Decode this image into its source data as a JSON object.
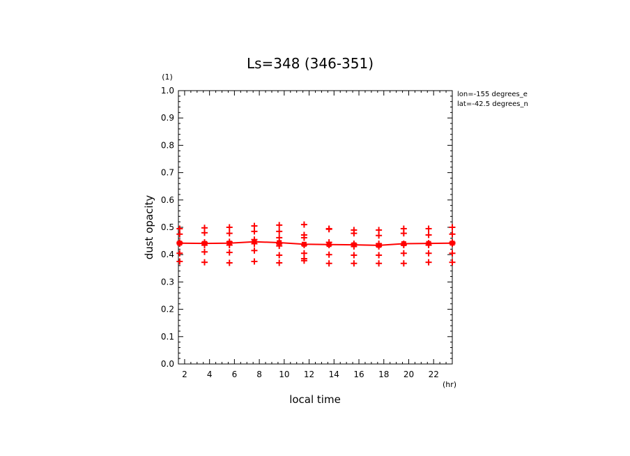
{
  "chart_data": {
    "type": "scatter",
    "title": "Ls=348 (346-351)",
    "xlabel": "local time",
    "ylabel": "dust opacity",
    "x_unit": "(hr)",
    "y_unit": "(1)",
    "xlim": [
      1.5,
      23.5
    ],
    "ylim": [
      0.0,
      1.0
    ],
    "xticks": [
      2,
      4,
      6,
      8,
      10,
      12,
      14,
      16,
      18,
      20,
      22
    ],
    "xtick_labels": [
      "2",
      "4",
      "6",
      "8",
      "10",
      "12",
      "14",
      "16",
      "18",
      "20",
      "22"
    ],
    "yticks": [
      0.0,
      0.1,
      0.2,
      0.3,
      0.4,
      0.5,
      0.6,
      0.7,
      0.8,
      0.9,
      1.0
    ],
    "ytick_labels": [
      "0.0",
      "0.1",
      "0.2",
      "0.3",
      "0.4",
      "0.5",
      "0.6",
      "0.7",
      "0.8",
      "0.9",
      "1.0"
    ],
    "annotations": [
      "lon=-155 degrees_e",
      "lat=-42.5 degrees_n"
    ],
    "color": "#ff0000",
    "mean_line": {
      "x": [
        1.6,
        3.6,
        5.6,
        7.6,
        9.6,
        11.6,
        13.6,
        15.6,
        17.6,
        19.6,
        21.6,
        23.5
      ],
      "y": [
        0.442,
        0.441,
        0.442,
        0.447,
        0.444,
        0.438,
        0.437,
        0.436,
        0.434,
        0.44,
        0.441,
        0.442
      ]
    },
    "points": [
      {
        "x": 1.6,
        "y": [
          0.495,
          0.475,
          0.445,
          0.44,
          0.405,
          0.375
        ]
      },
      {
        "x": 3.6,
        "y": [
          0.498,
          0.48,
          0.445,
          0.435,
          0.41,
          0.372
        ]
      },
      {
        "x": 5.6,
        "y": [
          0.5,
          0.478,
          0.447,
          0.435,
          0.408,
          0.37
        ]
      },
      {
        "x": 7.6,
        "y": [
          0.505,
          0.485,
          0.455,
          0.44,
          0.415,
          0.375
        ]
      },
      {
        "x": 9.6,
        "y": [
          0.508,
          0.485,
          0.462,
          0.44,
          0.432,
          0.398,
          0.37
        ]
      },
      {
        "x": 11.6,
        "y": [
          0.51,
          0.472,
          0.462,
          0.435,
          0.405,
          0.385,
          0.378
        ]
      },
      {
        "x": 13.6,
        "y": [
          0.495,
          0.493,
          0.445,
          0.435,
          0.4,
          0.368
        ]
      },
      {
        "x": 15.6,
        "y": [
          0.49,
          0.478,
          0.44,
          0.43,
          0.398,
          0.368
        ]
      },
      {
        "x": 17.6,
        "y": [
          0.49,
          0.47,
          0.44,
          0.43,
          0.398,
          0.368
        ]
      },
      {
        "x": 19.6,
        "y": [
          0.495,
          0.478,
          0.44,
          0.435,
          0.405,
          0.368
        ]
      },
      {
        "x": 21.6,
        "y": [
          0.495,
          0.472,
          0.442,
          0.435,
          0.405,
          0.372
        ]
      },
      {
        "x": 23.5,
        "y": [
          0.5,
          0.475,
          0.445,
          0.44,
          0.405,
          0.372
        ]
      }
    ]
  }
}
